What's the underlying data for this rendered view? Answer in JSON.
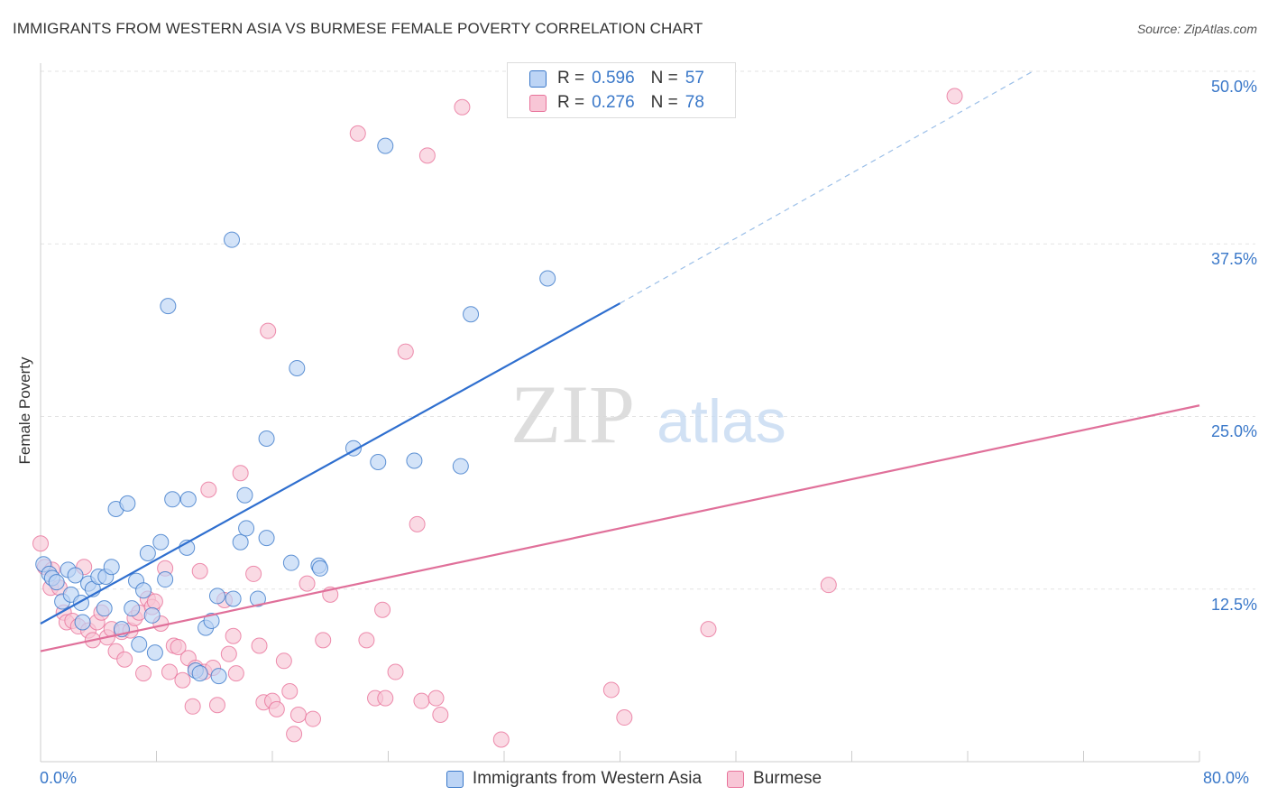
{
  "title": "IMMIGRANTS FROM WESTERN ASIA VS BURMESE FEMALE POVERTY CORRELATION CHART",
  "source": "Source: ZipAtlas.com",
  "watermark": {
    "zip": "ZIP",
    "atlas": "atlas"
  },
  "colors": {
    "blue": "#3a78c9",
    "blue_fill": "#bcd4f5",
    "blue_line": "#2f6fcf",
    "pink": "#e8729a",
    "pink_fill": "#f8c6d6",
    "pink_line": "#e0709a",
    "grid": "#e3e3e3"
  },
  "legend": {
    "r_label": "R =",
    "n_label": "N =",
    "blue": {
      "r": "0.596",
      "n": "57"
    },
    "pink": {
      "r": "0.276",
      "n": "78"
    }
  },
  "chart_data": {
    "type": "scatter",
    "title": "IMMIGRANTS FROM WESTERN ASIA VS BURMESE FEMALE POVERTY CORRELATION CHART",
    "xlabel": "",
    "ylabel": "Female Poverty",
    "xlim": [
      0,
      80
    ],
    "ylim": [
      0,
      52
    ],
    "x_tick_labels": [
      "0.0%",
      "80.0%"
    ],
    "y_ticks": [
      12.5,
      25.0,
      37.5,
      50.0
    ],
    "y_tick_labels": [
      "12.5%",
      "25.0%",
      "37.5%",
      "50.0%"
    ],
    "grid": true,
    "legend_position": "top-center",
    "series": [
      {
        "name": "Immigrants from Western Asia",
        "color": "#3a78c9",
        "trend": {
          "x0": 0,
          "y0": 10.0,
          "x1": 40,
          "y1": 33.2,
          "dash_to_x": 68.5,
          "dash_to_y": 50.0
        },
        "points": [
          [
            0.2,
            14.3
          ],
          [
            0.6,
            13.6
          ],
          [
            0.8,
            13.3
          ],
          [
            1.1,
            13.0
          ],
          [
            1.5,
            11.6
          ],
          [
            1.9,
            13.9
          ],
          [
            2.1,
            12.1
          ],
          [
            2.4,
            13.5
          ],
          [
            2.8,
            11.5
          ],
          [
            2.9,
            10.1
          ],
          [
            3.3,
            12.9
          ],
          [
            3.6,
            12.5
          ],
          [
            4.0,
            13.4
          ],
          [
            4.4,
            11.1
          ],
          [
            4.5,
            13.4
          ],
          [
            4.9,
            14.1
          ],
          [
            5.2,
            18.3
          ],
          [
            5.6,
            9.6
          ],
          [
            6.0,
            18.7
          ],
          [
            6.3,
            11.1
          ],
          [
            6.6,
            13.1
          ],
          [
            6.8,
            8.5
          ],
          [
            7.1,
            12.4
          ],
          [
            7.4,
            15.1
          ],
          [
            7.7,
            10.6
          ],
          [
            7.9,
            7.9
          ],
          [
            8.3,
            15.9
          ],
          [
            8.6,
            13.2
          ],
          [
            8.8,
            33.0
          ],
          [
            9.1,
            19.0
          ],
          [
            10.1,
            15.5
          ],
          [
            10.2,
            19.0
          ],
          [
            10.7,
            6.6
          ],
          [
            11.0,
            6.4
          ],
          [
            11.4,
            9.7
          ],
          [
            11.8,
            10.2
          ],
          [
            12.3,
            6.2
          ],
          [
            12.2,
            12.0
          ],
          [
            13.3,
            11.8
          ],
          [
            13.2,
            37.8
          ],
          [
            13.8,
            15.9
          ],
          [
            14.1,
            19.3
          ],
          [
            14.2,
            16.9
          ],
          [
            15.0,
            11.8
          ],
          [
            15.6,
            23.4
          ],
          [
            15.6,
            16.2
          ],
          [
            17.3,
            14.4
          ],
          [
            17.7,
            28.5
          ],
          [
            19.2,
            14.2
          ],
          [
            19.3,
            14.0
          ],
          [
            21.6,
            22.7
          ],
          [
            23.3,
            21.7
          ],
          [
            23.8,
            44.6
          ],
          [
            25.8,
            21.8
          ],
          [
            29.0,
            21.4
          ],
          [
            29.7,
            32.4
          ],
          [
            35.0,
            35.0
          ]
        ]
      },
      {
        "name": "Burmese",
        "color": "#e8729a",
        "trend": {
          "x0": 0,
          "y0": 8.0,
          "x1": 80,
          "y1": 25.8
        },
        "points": [
          [
            0.0,
            15.8
          ],
          [
            0.3,
            14.1
          ],
          [
            0.7,
            12.6
          ],
          [
            0.8,
            13.9
          ],
          [
            1.3,
            12.6
          ],
          [
            1.6,
            10.8
          ],
          [
            1.8,
            10.1
          ],
          [
            2.2,
            10.2
          ],
          [
            2.6,
            9.8
          ],
          [
            3.0,
            14.1
          ],
          [
            3.3,
            9.5
          ],
          [
            3.6,
            8.8
          ],
          [
            3.9,
            10.1
          ],
          [
            4.2,
            10.8
          ],
          [
            4.6,
            9.0
          ],
          [
            4.9,
            9.6
          ],
          [
            5.2,
            8.0
          ],
          [
            5.6,
            9.4
          ],
          [
            5.8,
            7.4
          ],
          [
            6.2,
            9.5
          ],
          [
            6.5,
            10.4
          ],
          [
            6.8,
            10.8
          ],
          [
            7.1,
            6.4
          ],
          [
            7.4,
            11.8
          ],
          [
            7.7,
            11.2
          ],
          [
            7.9,
            11.6
          ],
          [
            8.3,
            10.0
          ],
          [
            8.6,
            14.0
          ],
          [
            8.9,
            6.5
          ],
          [
            9.2,
            8.4
          ],
          [
            9.5,
            8.3
          ],
          [
            9.8,
            5.9
          ],
          [
            10.2,
            7.5
          ],
          [
            10.5,
            4.0
          ],
          [
            10.7,
            6.8
          ],
          [
            11.0,
            13.8
          ],
          [
            11.3,
            6.5
          ],
          [
            11.6,
            19.7
          ],
          [
            11.9,
            6.8
          ],
          [
            12.2,
            4.1
          ],
          [
            12.7,
            11.7
          ],
          [
            13.0,
            7.8
          ],
          [
            13.3,
            9.1
          ],
          [
            13.5,
            6.4
          ],
          [
            13.8,
            20.9
          ],
          [
            14.7,
            13.6
          ],
          [
            15.1,
            8.4
          ],
          [
            15.4,
            4.3
          ],
          [
            15.7,
            31.2
          ],
          [
            16.0,
            4.4
          ],
          [
            16.3,
            3.8
          ],
          [
            16.8,
            7.3
          ],
          [
            17.2,
            5.1
          ],
          [
            17.5,
            2.0
          ],
          [
            17.8,
            3.4
          ],
          [
            18.4,
            12.9
          ],
          [
            18.8,
            3.1
          ],
          [
            19.5,
            8.8
          ],
          [
            20.0,
            12.1
          ],
          [
            21.9,
            45.5
          ],
          [
            22.5,
            8.8
          ],
          [
            23.1,
            4.6
          ],
          [
            23.6,
            11.0
          ],
          [
            23.8,
            4.6
          ],
          [
            24.5,
            6.5
          ],
          [
            25.2,
            29.7
          ],
          [
            26.3,
            4.4
          ],
          [
            26.0,
            17.2
          ],
          [
            26.7,
            43.9
          ],
          [
            27.3,
            4.6
          ],
          [
            27.6,
            3.4
          ],
          [
            29.1,
            47.4
          ],
          [
            31.8,
            1.6
          ],
          [
            39.4,
            5.2
          ],
          [
            40.3,
            3.2
          ],
          [
            46.1,
            9.6
          ],
          [
            54.4,
            12.8
          ],
          [
            63.1,
            48.2
          ]
        ]
      }
    ]
  },
  "bottom_legend": {
    "blue": "Immigrants from Western Asia",
    "pink": "Burmese"
  }
}
